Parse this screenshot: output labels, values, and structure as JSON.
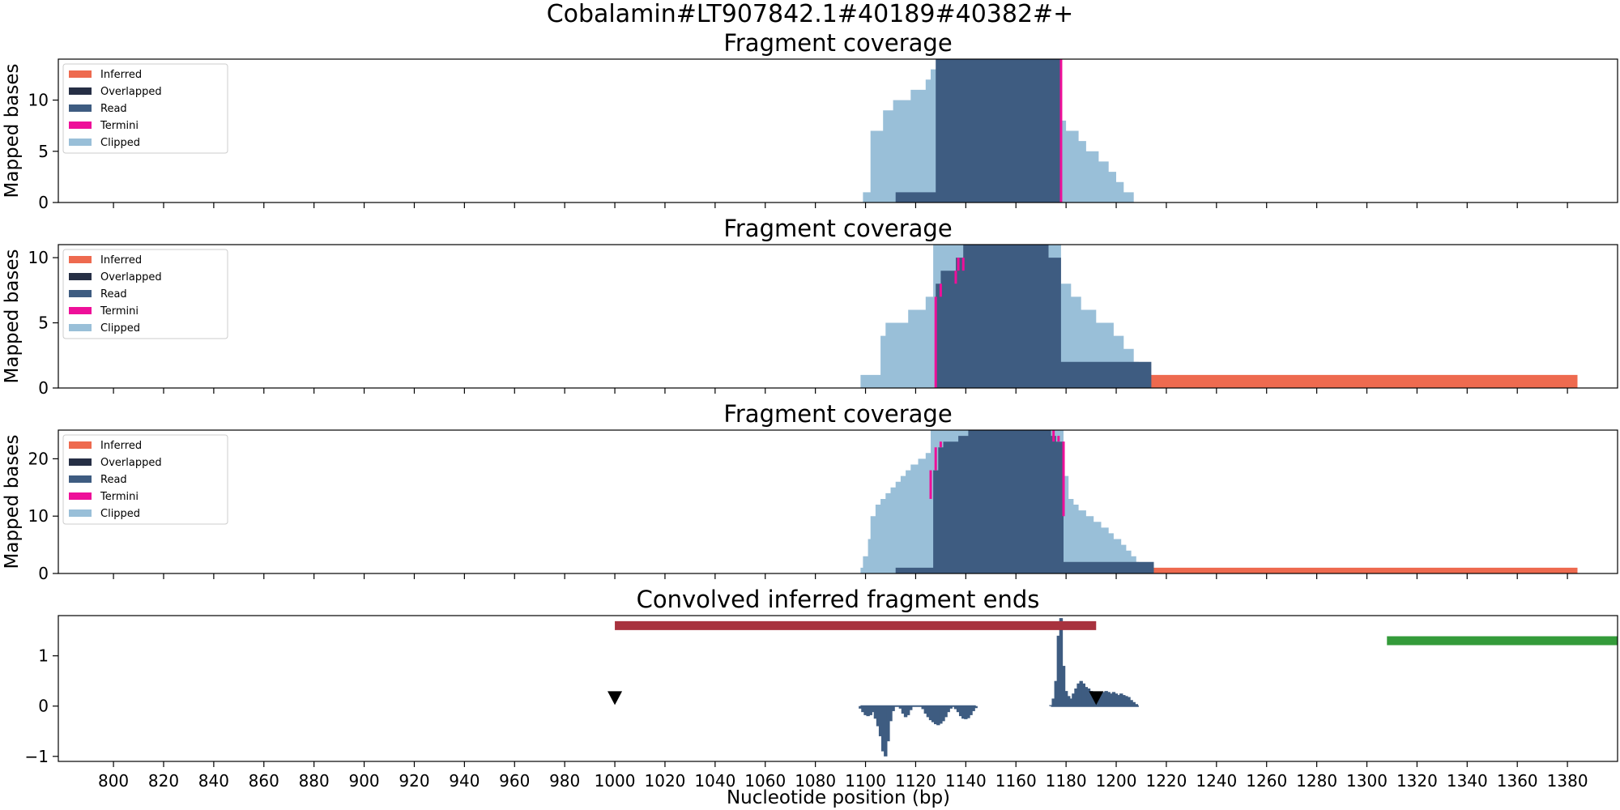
{
  "figure": {
    "suptitle": "Cobalamin#LT907842.1#40189#40382#+",
    "xlabel": "Nucleotide position (bp)"
  },
  "colors": {
    "inferred": "#ee6a4f",
    "overlapped": "#262f45",
    "read": "#3e5c81",
    "termini": "#ee0f99",
    "clipped": "#99bfd8",
    "end_markers": "#3e5c81",
    "red_bar": "#a8323e",
    "green_bar": "#349b3a"
  },
  "legend_labels": [
    "Inferred",
    "Overlapped",
    "Read",
    "Termini",
    "Clipped"
  ],
  "chart_data": [
    {
      "type": "area",
      "title": "Fragment coverage",
      "ylabel": "Mapped bases",
      "xlim": [
        778,
        1400
      ],
      "ylim": [
        0,
        14
      ],
      "yticks": [
        0,
        5,
        10
      ],
      "legend": "top-left",
      "series": [
        {
          "name": "Clipped",
          "points": [
            [
              1099,
              0
            ],
            [
              1099,
              1
            ],
            [
              1102,
              1
            ],
            [
              1102,
              7
            ],
            [
              1107,
              7
            ],
            [
              1107,
              9
            ],
            [
              1111,
              9
            ],
            [
              1111,
              10
            ],
            [
              1118,
              10
            ],
            [
              1118,
              11
            ],
            [
              1124,
              11
            ],
            [
              1124,
              12
            ],
            [
              1126,
              12
            ],
            [
              1126,
              13
            ],
            [
              1129,
              13
            ],
            [
              1129,
              14
            ],
            [
              1145,
              14
            ],
            [
              1145,
              14
            ],
            [
              1176,
              14
            ],
            [
              1176,
              8
            ],
            [
              1180,
              8
            ],
            [
              1180,
              7
            ],
            [
              1185,
              7
            ],
            [
              1185,
              6
            ],
            [
              1188,
              6
            ],
            [
              1188,
              5
            ],
            [
              1193,
              5
            ],
            [
              1193,
              4
            ],
            [
              1197,
              4
            ],
            [
              1197,
              3
            ],
            [
              1200,
              3
            ],
            [
              1200,
              2
            ],
            [
              1203,
              2
            ],
            [
              1203,
              1
            ],
            [
              1207,
              1
            ],
            [
              1207,
              0
            ]
          ]
        },
        {
          "name": "Read",
          "points": [
            [
              1112,
              0
            ],
            [
              1112,
              1
            ],
            [
              1128,
              1
            ],
            [
              1128,
              14
            ],
            [
              1178,
              14
            ],
            [
              1178,
              0
            ]
          ]
        },
        {
          "name": "Termini",
          "segments": [
            [
              1178,
              0,
              14
            ]
          ]
        }
      ]
    },
    {
      "type": "area",
      "title": "Fragment coverage",
      "ylabel": "Mapped bases",
      "xlim": [
        778,
        1400
      ],
      "ylim": [
        0,
        11
      ],
      "yticks": [
        0,
        5,
        10
      ],
      "legend": "top-left",
      "series": [
        {
          "name": "Clipped",
          "points": [
            [
              1098,
              0
            ],
            [
              1098,
              1
            ],
            [
              1106,
              1
            ],
            [
              1106,
              4
            ],
            [
              1108,
              4
            ],
            [
              1108,
              5
            ],
            [
              1117,
              5
            ],
            [
              1117,
              6
            ],
            [
              1124,
              6
            ],
            [
              1124,
              7
            ],
            [
              1127,
              7
            ],
            [
              1127,
              7
            ],
            [
              1127,
              11
            ],
            [
              1178,
              11
            ],
            [
              1178,
              8
            ],
            [
              1182,
              8
            ],
            [
              1182,
              7
            ],
            [
              1186,
              7
            ],
            [
              1186,
              6
            ],
            [
              1192,
              6
            ],
            [
              1192,
              5
            ],
            [
              1199,
              5
            ],
            [
              1199,
              4
            ],
            [
              1203,
              4
            ],
            [
              1203,
              3
            ],
            [
              1207,
              3
            ],
            [
              1207,
              2
            ],
            [
              1209,
              2
            ],
            [
              1209,
              0
            ]
          ]
        },
        {
          "name": "Read",
          "points": [
            [
              1128,
              0
            ],
            [
              1128,
              8
            ],
            [
              1130,
              8
            ],
            [
              1130,
              9
            ],
            [
              1136,
              9
            ],
            [
              1136,
              10
            ],
            [
              1139,
              10
            ],
            [
              1139,
              11
            ],
            [
              1173,
              11
            ],
            [
              1173,
              10
            ],
            [
              1178,
              10
            ],
            [
              1178,
              2
            ],
            [
              1214,
              2
            ],
            [
              1214,
              1
            ],
            [
              1214,
              0
            ]
          ]
        },
        {
          "name": "Inferred",
          "points": [
            [
              1211,
              0
            ],
            [
              1211,
              1
            ],
            [
              1384,
              1
            ],
            [
              1384,
              0
            ]
          ]
        },
        {
          "name": "Termini",
          "segments": [
            [
              1128,
              0,
              7
            ],
            [
              1130,
              7,
              8
            ],
            [
              1136,
              8,
              9
            ],
            [
              1139,
              9,
              10
            ],
            [
              1137,
              9,
              10
            ]
          ]
        }
      ]
    },
    {
      "type": "area",
      "title": "Fragment coverage",
      "ylabel": "Mapped bases",
      "xlim": [
        778,
        1400
      ],
      "ylim": [
        0,
        25
      ],
      "yticks": [
        0,
        10,
        20
      ],
      "legend": "top-left",
      "series": [
        {
          "name": "Clipped",
          "points": [
            [
              1098,
              0
            ],
            [
              1098,
              1
            ],
            [
              1099,
              1
            ],
            [
              1099,
              3
            ],
            [
              1101,
              3
            ],
            [
              1101,
              6
            ],
            [
              1102,
              6
            ],
            [
              1102,
              10
            ],
            [
              1104,
              10
            ],
            [
              1104,
              12
            ],
            [
              1106,
              12
            ],
            [
              1106,
              13
            ],
            [
              1108,
              13
            ],
            [
              1108,
              14
            ],
            [
              1110,
              14
            ],
            [
              1110,
              15
            ],
            [
              1112,
              15
            ],
            [
              1112,
              16
            ],
            [
              1114,
              16
            ],
            [
              1114,
              17
            ],
            [
              1116,
              17
            ],
            [
              1116,
              18
            ],
            [
              1118,
              18
            ],
            [
              1118,
              19
            ],
            [
              1121,
              19
            ],
            [
              1121,
              20
            ],
            [
              1124,
              20
            ],
            [
              1124,
              21
            ],
            [
              1126,
              21
            ],
            [
              1126,
              25
            ],
            [
              1179,
              25
            ],
            [
              1179,
              17
            ],
            [
              1181,
              17
            ],
            [
              1181,
              13
            ],
            [
              1183,
              13
            ],
            [
              1183,
              12
            ],
            [
              1185,
              12
            ],
            [
              1185,
              11
            ],
            [
              1188,
              11
            ],
            [
              1188,
              10
            ],
            [
              1191,
              10
            ],
            [
              1191,
              9
            ],
            [
              1194,
              9
            ],
            [
              1194,
              8
            ],
            [
              1197,
              8
            ],
            [
              1197,
              7
            ],
            [
              1199,
              7
            ],
            [
              1199,
              6
            ],
            [
              1202,
              6
            ],
            [
              1202,
              5
            ],
            [
              1204,
              5
            ],
            [
              1204,
              4
            ],
            [
              1206,
              4
            ],
            [
              1206,
              3
            ],
            [
              1208,
              3
            ],
            [
              1208,
              2
            ],
            [
              1209,
              2
            ],
            [
              1209,
              0
            ]
          ]
        },
        {
          "name": "Read",
          "points": [
            [
              1112,
              0
            ],
            [
              1112,
              1
            ],
            [
              1127,
              1
            ],
            [
              1127,
              18
            ],
            [
              1129,
              18
            ],
            [
              1129,
              22
            ],
            [
              1131,
              22
            ],
            [
              1131,
              23
            ],
            [
              1137,
              23
            ],
            [
              1137,
              24
            ],
            [
              1141,
              24
            ],
            [
              1141,
              25
            ],
            [
              1174,
              25
            ],
            [
              1174,
              24
            ],
            [
              1176,
              24
            ],
            [
              1176,
              23
            ],
            [
              1179,
              23
            ],
            [
              1179,
              2
            ],
            [
              1215,
              2
            ],
            [
              1215,
              0
            ]
          ]
        },
        {
          "name": "Inferred",
          "points": [
            [
              1211,
              0
            ],
            [
              1211,
              1
            ],
            [
              1384,
              1
            ],
            [
              1384,
              0
            ]
          ]
        },
        {
          "name": "Termini",
          "segments": [
            [
              1126,
              13,
              18
            ],
            [
              1128,
              18,
              22
            ],
            [
              1130,
              22,
              23
            ],
            [
              1175,
              23,
              25
            ],
            [
              1177,
              23,
              24
            ],
            [
              1179,
              10,
              23
            ]
          ]
        }
      ]
    },
    {
      "type": "bar",
      "title": "Convolved inferred fragment ends",
      "ylabel": "",
      "xlim": [
        778,
        1400
      ],
      "ylim": [
        -1.1,
        1.8
      ],
      "yticks": [
        -1,
        0,
        1
      ],
      "end_markers": [
        [
          1174,
          0.02
        ],
        [
          1175,
          0.15
        ],
        [
          1176,
          0.5
        ],
        [
          1177,
          1.4
        ],
        [
          1178,
          1.75
        ],
        [
          1179,
          0.8
        ],
        [
          1180,
          0.3
        ],
        [
          1181,
          0.2
        ],
        [
          1182,
          0.15
        ],
        [
          1183,
          0.25
        ],
        [
          1184,
          0.35
        ],
        [
          1185,
          0.45
        ],
        [
          1186,
          0.5
        ],
        [
          1187,
          0.45
        ],
        [
          1188,
          0.38
        ],
        [
          1189,
          0.35
        ],
        [
          1190,
          0.3
        ],
        [
          1191,
          0.28
        ],
        [
          1192,
          0.25
        ],
        [
          1193,
          0.22
        ],
        [
          1194,
          0.25
        ],
        [
          1195,
          0.28
        ],
        [
          1196,
          0.3
        ],
        [
          1197,
          0.28
        ],
        [
          1198,
          0.25
        ],
        [
          1199,
          0.28
        ],
        [
          1200,
          0.25
        ],
        [
          1201,
          0.22
        ],
        [
          1202,
          0.25
        ],
        [
          1203,
          0.22
        ],
        [
          1204,
          0.2
        ],
        [
          1205,
          0.18
        ],
        [
          1206,
          0.12
        ],
        [
          1207,
          0.08
        ],
        [
          1208,
          0.04
        ],
        [
          1098,
          -0.05
        ],
        [
          1099,
          -0.12
        ],
        [
          1100,
          -0.18
        ],
        [
          1101,
          -0.2
        ],
        [
          1102,
          -0.18
        ],
        [
          1103,
          -0.12
        ],
        [
          1104,
          -0.25
        ],
        [
          1105,
          -0.4
        ],
        [
          1106,
          -0.6
        ],
        [
          1107,
          -0.9
        ],
        [
          1108,
          -1.0
        ],
        [
          1109,
          -0.7
        ],
        [
          1110,
          -0.3
        ],
        [
          1111,
          -0.1
        ],
        [
          1114,
          -0.05
        ],
        [
          1115,
          -0.15
        ],
        [
          1116,
          -0.22
        ],
        [
          1117,
          -0.18
        ],
        [
          1118,
          -0.08
        ],
        [
          1123,
          -0.06
        ],
        [
          1124,
          -0.15
        ],
        [
          1125,
          -0.22
        ],
        [
          1126,
          -0.28
        ],
        [
          1127,
          -0.32
        ],
        [
          1128,
          -0.36
        ],
        [
          1129,
          -0.38
        ],
        [
          1130,
          -0.35
        ],
        [
          1131,
          -0.3
        ],
        [
          1132,
          -0.22
        ],
        [
          1133,
          -0.12
        ],
        [
          1134,
          -0.05
        ],
        [
          1136,
          -0.06
        ],
        [
          1137,
          -0.12
        ],
        [
          1138,
          -0.2
        ],
        [
          1139,
          -0.25
        ],
        [
          1140,
          -0.26
        ],
        [
          1141,
          -0.24
        ],
        [
          1142,
          -0.18
        ],
        [
          1143,
          -0.1
        ],
        [
          1144,
          -0.04
        ]
      ],
      "triangles": [
        [
          1000,
          0.15
        ],
        [
          1192,
          0.15
        ]
      ],
      "red_bar": {
        "x": [
          1000,
          1192
        ],
        "y": 1.6
      },
      "green_bar": {
        "x": [
          1308,
          1400
        ],
        "y": 1.3
      },
      "xticks": [
        800,
        820,
        840,
        860,
        880,
        900,
        920,
        940,
        960,
        980,
        1000,
        1020,
        1040,
        1060,
        1080,
        1100,
        1120,
        1140,
        1160,
        1180,
        1200,
        1220,
        1240,
        1260,
        1280,
        1300,
        1320,
        1340,
        1360,
        1380
      ]
    }
  ]
}
